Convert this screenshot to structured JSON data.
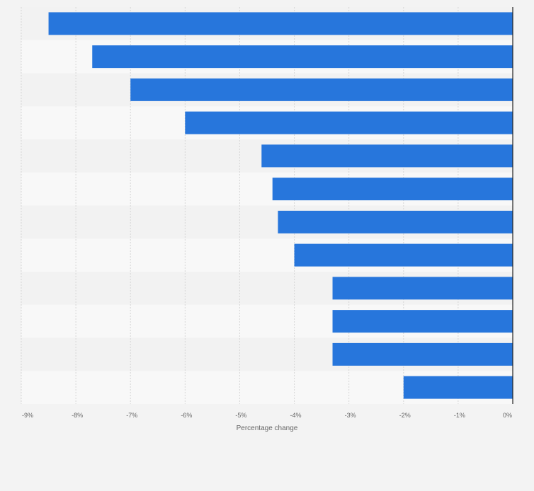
{
  "chart_data": {
    "type": "bar",
    "orientation": "horizontal",
    "title": "",
    "xlabel": "Percentage change",
    "ylabel": "",
    "categories": [
      "",
      "",
      "",
      "",
      "",
      "",
      "",
      "",
      "",
      "",
      "",
      ""
    ],
    "values": [
      -8.5,
      -7.7,
      -7.0,
      -6.0,
      -4.6,
      -4.4,
      -4.3,
      -4.0,
      -3.3,
      -3.3,
      -3.3,
      -2.0
    ],
    "xlim": [
      -9,
      0
    ],
    "ticks": [
      -9,
      -8,
      -7,
      -6,
      -5,
      -4,
      -3,
      -2,
      -1,
      0
    ],
    "tick_labels": [
      "-9%",
      "-8%",
      "-7%",
      "-6%",
      "-5%",
      "-4%",
      "-3%",
      "-2%",
      "-1%",
      "0%"
    ],
    "grid": true,
    "legend": "none",
    "colors": {
      "bar": "#2776dc",
      "background": "#f3f3f3",
      "band_light": "#f8f8f8",
      "band_dark": "#f2f2f2",
      "grid": "#d6d6d6",
      "axis": "#222222",
      "tick_text": "#666666"
    }
  }
}
